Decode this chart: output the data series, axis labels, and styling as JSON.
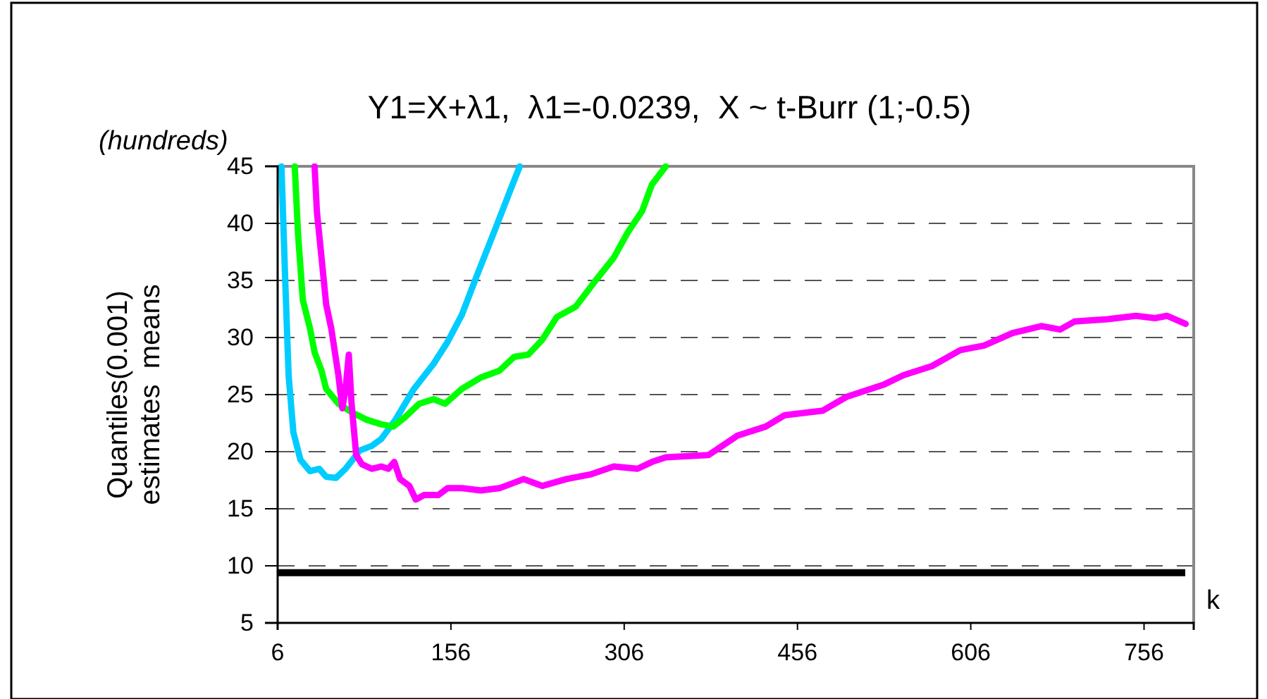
{
  "chart_data": {
    "type": "line",
    "title": "Y1=X+λ1,  λ1=-0.0239,  X ~ t-Burr (1;-0.5)",
    "ylabel": "Quantiles(0.001) estimates  means",
    "xlabel": "k",
    "annotations": [
      "(hundreds)"
    ],
    "xlim": [
      6,
      799
    ],
    "xticks": [
      6,
      156,
      306,
      456,
      606,
      756
    ],
    "ylim": [
      5,
      45
    ],
    "yticks": [
      5,
      10,
      15,
      20,
      25,
      30,
      35,
      40,
      45
    ],
    "grid": "y",
    "line_style": "solid",
    "ref_lines": [
      {
        "axis": "y",
        "value": 9.4,
        "color": "#000000"
      }
    ],
    "series": [
      {
        "color": "#00ccff",
        "x": [
          9.3,
          12.6,
          15.5,
          19.6,
          25.7,
          34,
          42,
          48,
          56.5,
          64.8,
          71,
          77,
          87.4,
          95.6,
          108,
          124,
          141,
          153,
          165.5,
          178,
          194,
          206.6,
          215.6
        ],
        "values": [
          45,
          34.9,
          26.7,
          21.7,
          19.3,
          18.3,
          18.5,
          17.8,
          17.7,
          18.5,
          19.3,
          20.1,
          20.5,
          21.1,
          22.8,
          25.5,
          27.7,
          29.6,
          32,
          35.3,
          39.4,
          42.7,
          45
        ]
      },
      {
        "color": "#00ff00",
        "x": [
          20.8,
          23.7,
          27.8,
          34,
          38,
          44,
          48,
          58.6,
          71,
          83,
          95.6,
          106,
          116,
          128.5,
          141,
          151,
          165.5,
          182,
          198,
          210.7,
          223,
          235,
          247.7,
          264,
          280.5,
          297,
          309,
          321.6,
          330,
          342
        ],
        "values": [
          45,
          39,
          33.3,
          30.8,
          28.7,
          27.1,
          25.5,
          24.2,
          23.4,
          22.8,
          22.4,
          22.2,
          23,
          24.2,
          24.6,
          24.2,
          25.5,
          26.5,
          27.1,
          28.3,
          28.5,
          29.8,
          31.8,
          32.7,
          34.9,
          37,
          39.2,
          41.1,
          43.4,
          45
        ]
      },
      {
        "color": "#ff00ff",
        "x": [
          38,
          40,
          44,
          48,
          52.4,
          58.6,
          62,
          64.8,
          67.6,
          70,
          74,
          79,
          87.4,
          95.6,
          101.8,
          107,
          112,
          120,
          125.6,
          132.6,
          145,
          153,
          165.5,
          182,
          198,
          219,
          235,
          256,
          276.5,
          297,
          317.5,
          330,
          342,
          379,
          404,
          428.5,
          445,
          478,
          498.4,
          531.3,
          547.7,
          572.4,
          597,
          617.6,
          642.2,
          667,
          683.4,
          695.7,
          724.4,
          749,
          765.5,
          775.8,
          792
        ],
        "values": [
          45,
          41,
          37,
          32.9,
          30.8,
          26.7,
          23.8,
          25.5,
          28.5,
          24.2,
          19.7,
          18.9,
          18.5,
          18.7,
          18.5,
          19.1,
          17.6,
          17,
          15.8,
          16.2,
          16.2,
          16.8,
          16.8,
          16.6,
          16.8,
          17.6,
          17,
          17.6,
          18,
          18.7,
          18.5,
          19.1,
          19.5,
          19.7,
          21.4,
          22.2,
          23.2,
          23.6,
          24.8,
          25.9,
          26.7,
          27.5,
          28.9,
          29.3,
          30.4,
          31,
          30.7,
          31.4,
          31.6,
          31.9,
          31.7,
          31.9,
          31.2
        ]
      }
    ]
  }
}
